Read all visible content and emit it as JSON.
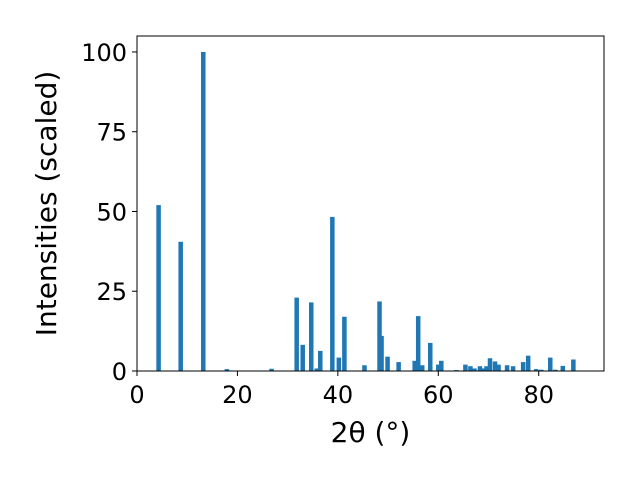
{
  "chart_data": {
    "type": "bar",
    "title": "",
    "xlabel": "2θ (°)",
    "ylabel": "Intensities (scaled)",
    "xlim": [
      0,
      93
    ],
    "ylim": [
      0,
      105
    ],
    "xticks": [
      0,
      20,
      40,
      60,
      80
    ],
    "yticks": [
      0,
      25,
      50,
      75,
      100
    ],
    "grid": false,
    "bar_color": "#1f77b4",
    "series": [
      {
        "x": [
          4.3,
          8.7,
          13.2,
          17.9,
          26.8,
          31.8,
          33.0,
          34.7,
          35.8,
          36.5,
          38.9,
          40.2,
          41.3,
          45.3,
          48.3,
          48.7,
          49.9,
          52.1,
          55.3,
          56.0,
          56.8,
          58.4,
          60.0,
          60.6,
          63.6,
          65.4,
          66.4,
          67.2,
          68.3,
          69.0,
          69.6,
          70.3,
          71.3,
          72.0,
          73.7,
          74.9,
          76.9,
          77.9,
          79.5,
          80.5,
          82.3,
          83.3,
          84.8,
          86.9
        ],
        "values": [
          52.0,
          40.5,
          100.0,
          0.6,
          0.7,
          23.0,
          8.2,
          21.5,
          0.8,
          6.3,
          48.3,
          4.2,
          17.0,
          1.8,
          21.8,
          11.0,
          4.5,
          2.8,
          3.2,
          17.2,
          1.8,
          8.8,
          2.0,
          3.2,
          0.3,
          2.0,
          1.5,
          0.8,
          1.5,
          0.8,
          1.5,
          4.0,
          3.0,
          2.0,
          1.8,
          1.5,
          2.8,
          4.8,
          0.6,
          0.4,
          4.2,
          0.4,
          1.6,
          3.6
        ]
      }
    ]
  }
}
